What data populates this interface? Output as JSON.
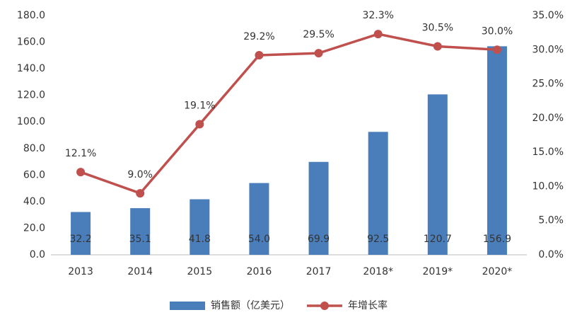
{
  "chart_data": {
    "type": "bar",
    "categories": [
      "2013",
      "2014",
      "2015",
      "2016",
      "2017",
      "2018*",
      "2019*",
      "2020*"
    ],
    "series": [
      {
        "name": "销售额（亿美元）",
        "type": "bar",
        "color": "#4a7ebb",
        "values": [
          32.2,
          35.1,
          41.8,
          54.0,
          69.9,
          92.5,
          120.7,
          156.9
        ],
        "value_labels": [
          "32.2",
          "35.1",
          "41.8",
          "54.0",
          "69.9",
          "92.5",
          "120.7",
          "156.9"
        ]
      },
      {
        "name": "年增长率",
        "type": "line",
        "axis": "y2",
        "color": "#c0504d",
        "values": [
          12.1,
          9.0,
          19.1,
          29.2,
          29.5,
          32.3,
          30.5,
          30.0
        ],
        "value_labels": [
          "12.1%",
          "9.0%",
          "19.1%",
          "29.2%",
          "29.5%",
          "32.3%",
          "30.5%",
          "30.0%"
        ]
      }
    ],
    "ylim": [
      0,
      180
    ],
    "yticks": [
      {
        "value": 0,
        "label": "0.0"
      },
      {
        "value": 20,
        "label": "20.0"
      },
      {
        "value": 40,
        "label": "40.0"
      },
      {
        "value": 60,
        "label": "60.0"
      },
      {
        "value": 80,
        "label": "80.0"
      },
      {
        "value": 100,
        "label": "100.0"
      },
      {
        "value": 120,
        "label": "120.0"
      },
      {
        "value": 140,
        "label": "140.0"
      },
      {
        "value": 160,
        "label": "160.0"
      },
      {
        "value": 180,
        "label": "180.0"
      }
    ],
    "y2lim": [
      0,
      35
    ],
    "y2ticks": [
      {
        "value": 0,
        "label": "0.0%"
      },
      {
        "value": 5,
        "label": "5.0%"
      },
      {
        "value": 10,
        "label": "10.0%"
      },
      {
        "value": 15,
        "label": "15.0%"
      },
      {
        "value": 20,
        "label": "20.0%"
      },
      {
        "value": 25,
        "label": "25.0%"
      },
      {
        "value": 30,
        "label": "30.0%"
      },
      {
        "value": 35,
        "label": "35.0%"
      }
    ],
    "grid": false,
    "legend": "bottom"
  }
}
